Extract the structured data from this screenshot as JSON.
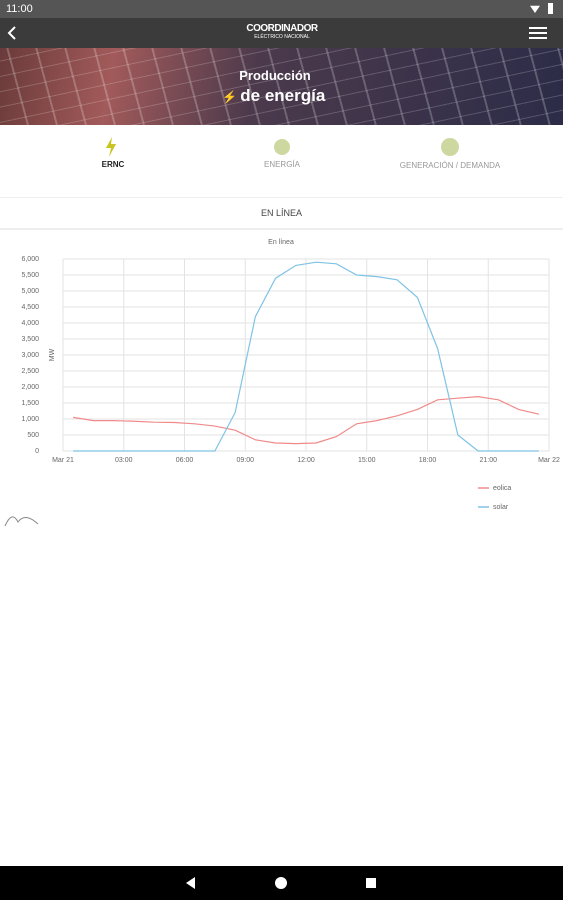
{
  "status_bar": {
    "time": "11:00"
  },
  "header": {
    "brand": "COORDINADOR",
    "brand_sub": "ELÉCTRICO NACIONAL"
  },
  "banner": {
    "line1": "Producción",
    "line2": "de energía"
  },
  "tabs": [
    "ERNC",
    "ENERGÍA",
    "GENERACIÓN / DEMANDA"
  ],
  "section": "EN LÍNEA",
  "chart_data": {
    "type": "line",
    "title": "En línea",
    "y_label": "MW",
    "x": [
      0.5,
      1.5,
      2.5,
      3.5,
      4.5,
      5.5,
      6.5,
      7.5,
      8.5,
      9.5,
      10.5,
      11.5,
      12.5,
      13.5,
      14.5,
      15.5,
      16.5,
      17.5,
      18.5,
      19.5,
      20.5,
      21.5,
      22.5,
      23.5
    ],
    "series": [
      {
        "name": "eolica",
        "color": "#f08a8a",
        "values": [
          1050,
          950,
          950,
          930,
          900,
          890,
          850,
          780,
          650,
          350,
          250,
          230,
          250,
          450,
          850,
          950,
          1100,
          1300,
          1600,
          1650,
          1700,
          1600,
          1300,
          1150
        ]
      },
      {
        "name": "solar",
        "color": "#7fc3e4",
        "values": [
          0,
          0,
          0,
          0,
          0,
          0,
          0,
          0,
          1200,
          4200,
          5400,
          5800,
          5900,
          5850,
          5500,
          5450,
          5350,
          4800,
          3200,
          500,
          0,
          0,
          0,
          0
        ]
      }
    ],
    "xlim": [
      0,
      24
    ],
    "xticks": [
      {
        "value": 0,
        "label": "Mar 21"
      },
      {
        "value": 3,
        "label": "03:00"
      },
      {
        "value": 6,
        "label": "06:00"
      },
      {
        "value": 9,
        "label": "09:00"
      },
      {
        "value": 12,
        "label": "12:00"
      },
      {
        "value": 15,
        "label": "15:00"
      },
      {
        "value": 18,
        "label": "18:00"
      },
      {
        "value": 21,
        "label": "21:00"
      },
      {
        "value": 24,
        "label": "Mar 22"
      }
    ],
    "ylim": [
      0,
      6000
    ],
    "yticks": [
      0,
      500,
      {
        "value": 1000,
        "label": "1,000"
      },
      {
        "value": 1500,
        "label": "1,500"
      },
      {
        "value": 2000,
        "label": "2,000"
      },
      {
        "value": 2500,
        "label": "2,500"
      },
      {
        "value": 3000,
        "label": "3,000"
      },
      {
        "value": 3500,
        "label": "3,500"
      },
      {
        "value": 4000,
        "label": "4,000"
      },
      {
        "value": 4500,
        "label": "4,500"
      },
      {
        "value": 5000,
        "label": "5,000"
      },
      {
        "value": 5500,
        "label": "5,500"
      },
      {
        "value": 6000,
        "label": "6,000"
      }
    ],
    "grid": true
  }
}
